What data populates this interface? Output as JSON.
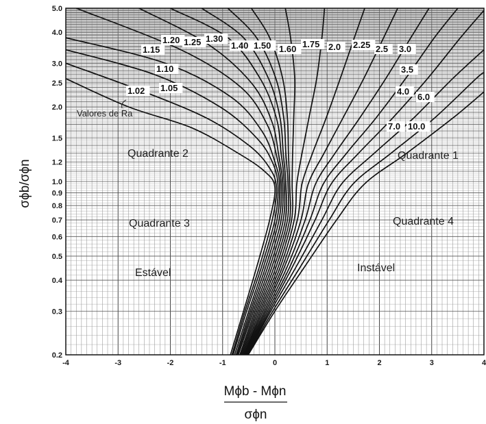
{
  "chart_data": {
    "type": "line",
    "title": "",
    "xlabel_numerator": "Mϕb - Mϕn",
    "xlabel_denominator": "σϕn",
    "ylabel": "σϕb/σϕn",
    "xlim": [
      -4,
      4
    ],
    "ylim": [
      0.2,
      5.0
    ],
    "yscale": "log",
    "grid": true,
    "x_ticks": [
      "-4",
      "-3",
      "-2",
      "-1",
      "0",
      "1",
      "2",
      "3",
      "4"
    ],
    "y_ticks": [
      "5.0",
      "4.0",
      "3.0",
      "2.5",
      "2.0",
      "1.5",
      "1.2",
      "1.0",
      "0.9",
      "0.8",
      "0.7",
      "0.6",
      "0.5",
      "0.4",
      "0.3",
      "0.2"
    ],
    "curve_labels": [
      "1.02",
      "1.05",
      "1.10",
      "1.15",
      "1.20",
      "1.25",
      "1.30",
      "1.40",
      "1.50",
      "1.60",
      "1.75",
      "2.0",
      "2.25",
      "2.5",
      "3.0",
      "3.5",
      "4.0",
      "6.0",
      "7.0",
      "10.0"
    ],
    "series": [
      {
        "name": "1.02",
        "x": [
          -0.85,
          -0.6,
          -0.35,
          -0.1,
          0.0,
          -0.2,
          -0.7,
          -1.6,
          -2.8,
          -4.0
        ],
        "y": [
          0.2,
          0.3,
          0.45,
          0.7,
          0.95,
          1.1,
          1.3,
          1.65,
          2.0,
          2.6
        ]
      },
      {
        "name": "1.05",
        "x": [
          -0.82,
          -0.57,
          -0.3,
          -0.05,
          0.03,
          -0.12,
          -0.5,
          -1.3,
          -2.5,
          -4.0
        ],
        "y": [
          0.2,
          0.3,
          0.45,
          0.7,
          0.95,
          1.15,
          1.4,
          1.8,
          2.3,
          3.0
        ]
      },
      {
        "name": "1.10",
        "x": [
          -0.8,
          -0.54,
          -0.26,
          0.0,
          0.06,
          -0.05,
          -0.35,
          -1.05,
          -2.3,
          -4.0
        ],
        "y": [
          0.2,
          0.3,
          0.45,
          0.7,
          0.96,
          1.2,
          1.5,
          2.0,
          2.7,
          3.4
        ]
      },
      {
        "name": "1.15",
        "x": [
          -0.77,
          -0.5,
          -0.22,
          0.04,
          0.09,
          0.0,
          -0.25,
          -0.85,
          -2.1,
          -4.0
        ],
        "y": [
          0.2,
          0.3,
          0.45,
          0.7,
          0.97,
          1.2,
          1.6,
          2.2,
          3.0,
          3.8
        ]
      },
      {
        "name": "1.20",
        "x": [
          -0.74,
          -0.47,
          -0.18,
          0.08,
          0.12,
          0.04,
          -0.15,
          -0.65,
          -1.8,
          -3.8
        ],
        "y": [
          0.2,
          0.3,
          0.45,
          0.7,
          0.97,
          1.25,
          1.7,
          2.4,
          3.4,
          5.0
        ]
      },
      {
        "name": "1.25",
        "x": [
          -0.72,
          -0.44,
          -0.14,
          0.12,
          0.15,
          0.08,
          -0.06,
          -0.45,
          -1.3,
          -2.6
        ],
        "y": [
          0.2,
          0.3,
          0.45,
          0.7,
          0.98,
          1.25,
          1.75,
          2.5,
          3.6,
          5.0
        ]
      },
      {
        "name": "1.30",
        "x": [
          -0.7,
          -0.41,
          -0.1,
          0.16,
          0.18,
          0.12,
          0.03,
          -0.28,
          -0.9,
          -2.0
        ],
        "y": [
          0.2,
          0.3,
          0.45,
          0.7,
          0.98,
          1.3,
          1.8,
          2.6,
          3.8,
          5.0
        ]
      },
      {
        "name": "1.40",
        "x": [
          -0.67,
          -0.38,
          -0.06,
          0.2,
          0.21,
          0.16,
          0.1,
          -0.12,
          -0.6,
          -1.4
        ],
        "y": [
          0.2,
          0.3,
          0.45,
          0.7,
          0.98,
          1.3,
          1.8,
          2.6,
          3.8,
          5.0
        ]
      },
      {
        "name": "1.50",
        "x": [
          -0.65,
          -0.35,
          -0.02,
          0.24,
          0.25,
          0.21,
          0.17,
          0.02,
          -0.35,
          -0.9
        ],
        "y": [
          0.2,
          0.3,
          0.45,
          0.7,
          0.98,
          1.3,
          1.8,
          2.6,
          3.8,
          5.0
        ]
      },
      {
        "name": "1.60",
        "x": [
          -0.63,
          -0.32,
          0.02,
          0.28,
          0.28,
          0.26,
          0.24,
          0.15,
          -0.1,
          -0.45
        ],
        "y": [
          0.2,
          0.3,
          0.45,
          0.7,
          0.98,
          1.3,
          1.8,
          2.6,
          3.8,
          5.0
        ]
      },
      {
        "name": "1.75",
        "x": [
          -0.61,
          -0.29,
          0.06,
          0.32,
          0.33,
          0.34,
          0.36,
          0.38,
          0.3,
          0.2
        ],
        "y": [
          0.2,
          0.3,
          0.45,
          0.7,
          0.98,
          1.3,
          1.8,
          2.6,
          3.8,
          5.0
        ]
      },
      {
        "name": "2.0",
        "x": [
          -0.59,
          -0.26,
          0.1,
          0.37,
          0.42,
          0.52,
          0.65,
          0.8,
          0.9,
          0.95
        ],
        "y": [
          0.2,
          0.3,
          0.45,
          0.7,
          0.98,
          1.3,
          1.8,
          2.6,
          3.8,
          5.0
        ]
      },
      {
        "name": "2.25",
        "x": [
          -0.58,
          -0.23,
          0.14,
          0.43,
          0.52,
          0.72,
          0.98,
          1.25,
          1.52,
          1.72
        ],
        "y": [
          0.2,
          0.3,
          0.45,
          0.7,
          0.98,
          1.3,
          1.8,
          2.6,
          3.8,
          5.0
        ]
      },
      {
        "name": "2.5",
        "x": [
          -0.57,
          -0.2,
          0.18,
          0.5,
          0.64,
          0.94,
          1.3,
          1.7,
          2.08,
          2.35
        ],
        "y": [
          0.2,
          0.3,
          0.45,
          0.7,
          0.98,
          1.3,
          1.8,
          2.6,
          3.8,
          5.0
        ]
      },
      {
        "name": "3.0",
        "x": [
          -0.56,
          -0.17,
          0.23,
          0.58,
          0.78,
          1.15,
          1.62,
          2.12,
          2.6,
          2.95
        ],
        "y": [
          0.2,
          0.3,
          0.45,
          0.7,
          0.98,
          1.3,
          1.8,
          2.6,
          3.8,
          5.0
        ]
      },
      {
        "name": "3.5",
        "x": [
          -0.55,
          -0.14,
          0.28,
          0.67,
          0.93,
          1.37,
          1.93,
          2.5,
          3.05,
          3.5
        ],
        "y": [
          0.2,
          0.3,
          0.45,
          0.7,
          0.98,
          1.3,
          1.8,
          2.6,
          3.8,
          5.0
        ]
      },
      {
        "name": "4.0",
        "x": [
          -0.54,
          -0.11,
          0.33,
          0.77,
          1.08,
          1.6,
          2.25,
          2.92,
          3.55,
          4.0
        ],
        "y": [
          0.2,
          0.3,
          0.45,
          0.7,
          0.98,
          1.3,
          1.8,
          2.6,
          3.8,
          4.9
        ]
      },
      {
        "name": "6.0",
        "x": [
          -0.53,
          -0.08,
          0.4,
          0.9,
          1.28,
          1.9,
          2.65,
          3.4,
          4.0
        ],
        "y": [
          0.2,
          0.3,
          0.45,
          0.7,
          0.98,
          1.3,
          1.8,
          2.6,
          3.4
        ]
      },
      {
        "name": "7.0",
        "x": [
          -0.52,
          -0.04,
          0.48,
          1.04,
          1.5,
          2.22,
          3.05,
          3.85,
          4.0
        ],
        "y": [
          0.2,
          0.3,
          0.45,
          0.7,
          0.98,
          1.3,
          1.8,
          2.6,
          2.75
        ]
      },
      {
        "name": "10.0",
        "x": [
          -0.51,
          0.0,
          0.56,
          1.18,
          1.72,
          2.52,
          3.4,
          4.0
        ],
        "y": [
          0.2,
          0.3,
          0.45,
          0.7,
          0.98,
          1.3,
          1.8,
          2.3
        ]
      }
    ],
    "annotations": {
      "q2": "Quadrante 2",
      "q1": "Quadrante 1",
      "q3": "Quadrante 3",
      "q4": "Quadrante 4",
      "stable": "Estável",
      "unstable": "Instável",
      "ra": "Valores de Ra"
    }
  }
}
